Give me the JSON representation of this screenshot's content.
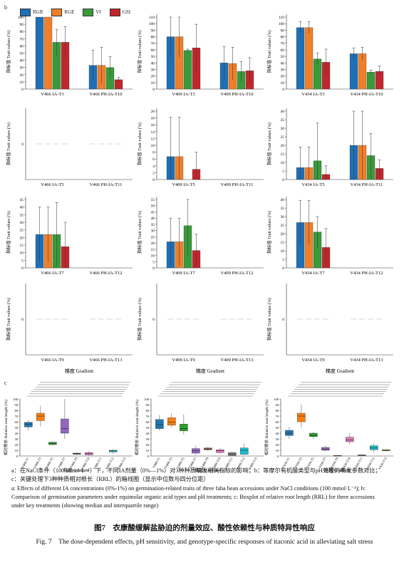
{
  "panel_labels": {
    "b": "b",
    "c": "c"
  },
  "legend": [
    {
      "name": "RGR",
      "color": "#1f6fb5"
    },
    {
      "name": "RGE",
      "color": "#f07f2a"
    },
    {
      "name": "VI",
      "color": "#3a9a3a"
    },
    {
      "name": "GSI",
      "color": "#c0272d"
    }
  ],
  "ylabel_cn": "指标值",
  "ylabel_en": "Trait values (%)",
  "xlabel_bottom_cn": "梯度",
  "xlabel_bottom_en": "Gradient",
  "chart_data": [
    {
      "type": "bar",
      "row": 1,
      "col": 1,
      "categories": [
        "V466 IA-T3",
        "V466 PH-IA-T10"
      ],
      "ylim": [
        0,
        100
      ],
      "series": [
        {
          "name": "RGR",
          "values": [
            100,
            33
          ]
        },
        {
          "name": "RGE",
          "values": [
            100,
            33
          ]
        },
        {
          "name": "VI",
          "values": [
            65,
            30
          ]
        },
        {
          "name": "GSI",
          "values": [
            65,
            13
          ]
        }
      ],
      "errors": [
        [
          0,
          21
        ],
        [
          0,
          25
        ],
        [
          18,
          15
        ],
        [
          22,
          3
        ]
      ]
    },
    {
      "type": "bar",
      "row": 1,
      "col": 2,
      "categories": [
        "V409 IA-T3",
        "V409 PH-IA-T10"
      ],
      "ylim": [
        0,
        110
      ],
      "series": [
        {
          "name": "RGR",
          "values": [
            80,
            40
          ]
        },
        {
          "name": "RGE",
          "values": [
            80,
            39
          ]
        },
        {
          "name": "VI",
          "values": [
            59,
            27
          ]
        },
        {
          "name": "GSI",
          "values": [
            63,
            28
          ]
        }
      ],
      "errors": [
        [
          32,
          25
        ],
        [
          32,
          25
        ],
        [
          2,
          15
        ],
        [
          36,
          20
        ]
      ]
    },
    {
      "type": "bar",
      "row": 1,
      "col": 3,
      "categories": [
        "V434 IA-T3",
        "V434 PH-IA-T10"
      ],
      "ylim": [
        0,
        110
      ],
      "series": [
        {
          "name": "RGR",
          "values": [
            94,
            54
          ]
        },
        {
          "name": "RGE",
          "values": [
            94,
            54
          ]
        },
        {
          "name": "VI",
          "values": [
            46,
            26
          ]
        },
        {
          "name": "GSI",
          "values": [
            41,
            27
          ]
        }
      ],
      "errors": [
        [
          9,
          9
        ],
        [
          9,
          10
        ],
        [
          9,
          3
        ],
        [
          20,
          8
        ]
      ]
    },
    {
      "type": "bar",
      "row": 2,
      "col": 1,
      "categories": [
        "V466 IA-T5",
        "V466 PH-IA-T11"
      ],
      "yticks": [
        "0"
      ],
      "series": [
        {
          "name": "RGR",
          "values": [
            0,
            0
          ]
        },
        {
          "name": "RGE",
          "values": [
            0,
            0
          ]
        },
        {
          "name": "VI",
          "values": [
            0,
            0
          ]
        },
        {
          "name": "GSI",
          "values": [
            0,
            0
          ]
        }
      ]
    },
    {
      "type": "bar",
      "row": 2,
      "col": 2,
      "categories": [
        "V409 IA-T5",
        "V409 PH-IA-T11"
      ],
      "ylim": [
        0,
        20
      ],
      "series": [
        {
          "name": "RGR",
          "values": [
            6.7,
            0
          ]
        },
        {
          "name": "RGE",
          "values": [
            6.7,
            0
          ]
        },
        {
          "name": "VI",
          "values": [
            0,
            0
          ]
        },
        {
          "name": "GSI",
          "values": [
            3,
            0
          ]
        }
      ],
      "errors": [
        [
          11.5,
          0
        ],
        [
          11.5,
          0
        ],
        [
          0,
          0
        ],
        [
          5,
          0
        ]
      ]
    },
    {
      "type": "bar",
      "row": 2,
      "col": 3,
      "categories": [
        "V434 IA-T5",
        "V434 PH-IA-T11"
      ],
      "ylim": [
        0,
        40
      ],
      "series": [
        {
          "name": "RGR",
          "values": [
            7,
            20
          ]
        },
        {
          "name": "RGE",
          "values": [
            7,
            20
          ]
        },
        {
          "name": "VI",
          "values": [
            11,
            14
          ]
        },
        {
          "name": "GSI",
          "values": [
            3,
            6.5
          ]
        }
      ],
      "errors": [
        [
          12,
          20
        ],
        [
          12,
          20
        ],
        [
          22,
          13
        ],
        [
          5,
          5
        ]
      ]
    },
    {
      "type": "bar",
      "row": 3,
      "col": 1,
      "categories": [
        "V466 IA-T7",
        "V466 PH-IA-T12"
      ],
      "ylim": [
        0,
        45
      ],
      "series": [
        {
          "name": "RGR",
          "values": [
            22,
            0
          ]
        },
        {
          "name": "RGE",
          "values": [
            22,
            0
          ]
        },
        {
          "name": "VI",
          "values": [
            22,
            0
          ]
        },
        {
          "name": "GSI",
          "values": [
            14,
            0
          ]
        }
      ],
      "errors": [
        [
          18,
          0
        ],
        [
          18,
          0
        ],
        [
          21,
          0
        ],
        [
          16,
          0
        ]
      ]
    },
    {
      "type": "bar",
      "row": 3,
      "col": 2,
      "categories": [
        "V409 IA-T7",
        "V409 PH-IA-T12"
      ],
      "ylim": [
        0,
        55
      ],
      "series": [
        {
          "name": "RGR",
          "values": [
            21,
            0
          ]
        },
        {
          "name": "RGE",
          "values": [
            21,
            0
          ]
        },
        {
          "name": "VI",
          "values": [
            34,
            0
          ]
        },
        {
          "name": "GSI",
          "values": [
            14,
            0
          ]
        }
      ],
      "errors": [
        [
          19,
          0
        ],
        [
          19,
          0
        ],
        [
          24,
          0
        ],
        [
          13,
          0
        ]
      ]
    },
    {
      "type": "bar",
      "row": 3,
      "col": 3,
      "categories": [
        "V434 IA-T7",
        "V434 PH-IA-T12"
      ],
      "ylim": [
        0,
        40
      ],
      "series": [
        {
          "name": "RGR",
          "values": [
            26.5,
            0
          ]
        },
        {
          "name": "RGE",
          "values": [
            26.5,
            0
          ]
        },
        {
          "name": "VI",
          "values": [
            21,
            0
          ]
        },
        {
          "name": "GSI",
          "values": [
            12,
            0
          ]
        }
      ],
      "errors": [
        [
          13,
          0
        ],
        [
          13,
          0
        ],
        [
          9,
          0
        ],
        [
          11,
          0
        ]
      ]
    },
    {
      "type": "bar",
      "row": 4,
      "col": 1,
      "categories": [
        "V466 IA-T9",
        "V466 PH-IA-T13"
      ],
      "yticks": [
        "0"
      ],
      "series": [
        {
          "name": "RGR",
          "values": [
            0,
            0
          ]
        },
        {
          "name": "RGE",
          "values": [
            0,
            0
          ]
        },
        {
          "name": "VI",
          "values": [
            0,
            0
          ]
        },
        {
          "name": "GSI",
          "values": [
            0,
            0
          ]
        }
      ]
    },
    {
      "type": "bar",
      "row": 4,
      "col": 2,
      "categories": [
        "V409 IA-T9",
        "V409 PH-IA-T13"
      ],
      "yticks": [
        "0"
      ],
      "series": [
        {
          "name": "RGR",
          "values": [
            0,
            0
          ]
        },
        {
          "name": "RGE",
          "values": [
            0,
            0
          ]
        },
        {
          "name": "VI",
          "values": [
            0,
            0
          ]
        },
        {
          "name": "GSI",
          "values": [
            0,
            0
          ]
        }
      ]
    },
    {
      "type": "bar",
      "row": 4,
      "col": 3,
      "categories": [
        "V434 IA-T9",
        "V434 PH-IA-T13"
      ],
      "yticks": [
        "0"
      ],
      "series": [
        {
          "name": "RGR",
          "values": [
            0,
            0
          ]
        },
        {
          "name": "RGE",
          "values": [
            0,
            0
          ]
        },
        {
          "name": "VI",
          "values": [
            0,
            0
          ]
        },
        {
          "name": "GSI",
          "values": [
            0,
            0
          ]
        }
      ]
    },
    {
      "type": "box",
      "row": 5,
      "col": 1,
      "ylabel": "相对根长 Relative root length (%)",
      "ylim": [
        0,
        100
      ],
      "categories": [
        "V466-T1",
        "V466-T3",
        "V466-T5",
        "V466-T7",
        "V466-T9",
        "V466-T10",
        "V466-T11",
        "V466-T12",
        "V466-T13"
      ],
      "boxes": [
        [
          45,
          51,
          56,
          59,
          63
        ],
        [
          52,
          62,
          70,
          75,
          88
        ],
        [
          18,
          20,
          22,
          24,
          26
        ],
        [
          30,
          40,
          48,
          65,
          100
        ],
        [
          2,
          3,
          4,
          5,
          6
        ],
        [
          1,
          2,
          4,
          6,
          9
        ],
        [
          0,
          0,
          0,
          0,
          0
        ],
        [
          4,
          7,
          9,
          10,
          12
        ],
        [
          0,
          0,
          0,
          0,
          0
        ]
      ]
    },
    {
      "type": "box",
      "row": 5,
      "col": 2,
      "ylabel": "相对根长 Relative root length (%)",
      "ylim": [
        0,
        100
      ],
      "categories": [
        "V409-T1",
        "V409-T3",
        "V409-T5",
        "V409-T7",
        "V409-T9",
        "V409-T10",
        "V409-T11",
        "V409-T12",
        "V409-T13"
      ],
      "boxes": [
        [
          45,
          48,
          55,
          64,
          72
        ],
        [
          50,
          54,
          59,
          67,
          75
        ],
        [
          38,
          44,
          48,
          56,
          73
        ],
        [
          2,
          5,
          9,
          13,
          18
        ],
        [
          9,
          11,
          12,
          14,
          16
        ],
        [
          4,
          6,
          9,
          11,
          14
        ],
        [
          0,
          1,
          3,
          6,
          8
        ],
        [
          2,
          3,
          10,
          14,
          22
        ],
        [
          0,
          0,
          0,
          0,
          0
        ]
      ]
    },
    {
      "type": "box",
      "row": 5,
      "col": 3,
      "ylabel": "相对根长 Relative root length (%)",
      "ylim": [
        0,
        100
      ],
      "categories": [
        "V434-T1",
        "V434-T3",
        "V434-T5",
        "V434-T7",
        "V434-T9",
        "V434-T10",
        "V434-T11",
        "V434-T12",
        "V434-T13"
      ],
      "boxes": [
        [
          30,
          36,
          40,
          45,
          51
        ],
        [
          50,
          60,
          70,
          75,
          90
        ],
        [
          30,
          34,
          36,
          40,
          42
        ],
        [
          8,
          10,
          12,
          15,
          18
        ],
        [
          0,
          0,
          1,
          1,
          2
        ],
        [
          20,
          25,
          28,
          33,
          40
        ],
        [
          0,
          1,
          1,
          2,
          3
        ],
        [
          6,
          11,
          14,
          18,
          22
        ],
        [
          8,
          9,
          10,
          11,
          12
        ]
      ]
    }
  ],
  "caption_cn_a": "a：在NaCl条件（100 mmol·L⁻¹）下，不同IA剂量（0%—1%）对3种种质萌发相关指标的影响；b：等摩尔有机酸类型与pH处理的萌发参数对比；",
  "caption_cn_b": "c：关键处理下3种种质相对根长（RRL）的箱线图（显示中位数与四分位距）",
  "caption_en_1": "a: Effects of different IA concentrations (0%-1%) on germination-related traits of three faba bean accessions under NaCl conditions (100 mmol·L⁻¹); b:",
  "caption_en_2": "Comparison of germination parameters under equimolar organic acid types and pH treatments; c: Boxplot of relative root length (RRL) for three accessions",
  "caption_en_3": "under key treatments (showing median and interquartile range)",
  "fig_title_cn": "图7　衣康酸缓解盐胁迫的剂量效应、酸性依赖性与种质特异性响应",
  "fig_title_en": "Fig. 7　The dose-dependent effects, pH sensitivity, and genotype-specific responses of itaconic acid in alleviating salt stress"
}
